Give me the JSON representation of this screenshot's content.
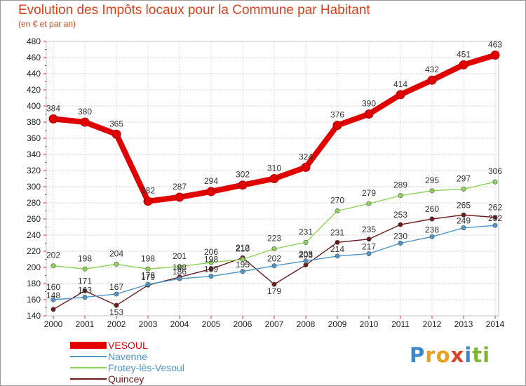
{
  "header": {
    "title": "Evolution des Impôts locaux pour la Commune par Habitant",
    "subtitle": "(en € et par an)"
  },
  "chart_data": {
    "type": "line",
    "title": "Evolution des Impôts locaux pour la Commune par Habitant",
    "subtitle": "(en € et par an)",
    "xlabel": "",
    "ylabel": "",
    "categories": [
      "2000",
      "2001",
      "2002",
      "2003",
      "2004",
      "2005",
      "2006",
      "2007",
      "2008",
      "2009",
      "2010",
      "2011",
      "2012",
      "2013",
      "2014"
    ],
    "ylim": [
      140,
      480
    ],
    "yticks": [
      140,
      160,
      180,
      200,
      220,
      240,
      260,
      280,
      300,
      320,
      340,
      360,
      380,
      400,
      420,
      440,
      460,
      480
    ],
    "grid": true,
    "legend_position": "bottom-left",
    "series": [
      {
        "name": "VESOUL",
        "color": "#e00000",
        "values": [
          384,
          380,
          365,
          282,
          287,
          294,
          302,
          310,
          324,
          376,
          390,
          414,
          432,
          451,
          463
        ]
      },
      {
        "name": "Navenne",
        "color": "#4f95c8",
        "values": [
          160,
          163,
          167,
          179,
          186,
          189,
          195,
          202,
          208,
          214,
          217,
          230,
          238,
          249,
          252
        ]
      },
      {
        "name": "Frotey-lès-Vesoul",
        "color": "#8fd35a",
        "values": [
          202,
          198,
          204,
          198,
          201,
          206,
          210,
          223,
          231,
          270,
          279,
          289,
          295,
          297,
          306
        ]
      },
      {
        "name": "Quincey",
        "color": "#6b1a1a",
        "values": [
          148,
          171,
          153,
          178,
          188,
          198,
          212,
          179,
          203,
          231,
          235,
          253,
          260,
          265,
          262
        ]
      }
    ]
  },
  "logo": {
    "letters": [
      "P",
      "r",
      "o",
      "x",
      "i",
      "t",
      "i"
    ],
    "colors": [
      "#3a86c8",
      "#e6a123",
      "#e6a123",
      "#d9452b",
      "#3a86c8",
      "#7cb82f",
      "#7cb82f"
    ]
  }
}
